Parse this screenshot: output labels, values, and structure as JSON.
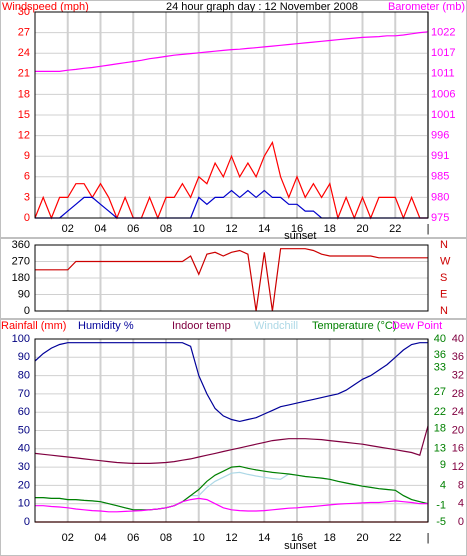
{
  "chart_data": [
    {
      "type": "line",
      "title": "24 hour graph day : 12 November 2008",
      "annotation": {
        "text": "sunset",
        "x": 16.2
      },
      "x": [
        0,
        0.5,
        1,
        1.5,
        2,
        2.5,
        3,
        3.5,
        4,
        4.5,
        5,
        5.5,
        6,
        6.5,
        7,
        7.5,
        8,
        8.5,
        9,
        9.5,
        10,
        10.5,
        11,
        11.5,
        12,
        12.5,
        13,
        13.5,
        14,
        14.5,
        15,
        15.5,
        16,
        16.5,
        17,
        17.5,
        18,
        18.5,
        19,
        19.5,
        20,
        20.5,
        21,
        21.5,
        22,
        22.5,
        23,
        23.5,
        24
      ],
      "xlim": [
        0,
        24
      ],
      "xticks": [
        {
          "value": 2,
          "label": "02"
        },
        {
          "value": 4,
          "label": "04"
        },
        {
          "value": 6,
          "label": "06"
        },
        {
          "value": 8,
          "label": "08"
        },
        {
          "value": 10,
          "label": "10"
        },
        {
          "value": 12,
          "label": "12"
        },
        {
          "value": 14,
          "label": "14"
        },
        {
          "value": 16,
          "label": "16"
        },
        {
          "value": 18,
          "label": "18"
        },
        {
          "value": 20,
          "label": "20"
        },
        {
          "value": 22,
          "label": "22"
        },
        {
          "value": 24,
          "label": "|"
        }
      ],
      "ylim": [
        0,
        30
      ],
      "yticks": [
        0,
        3,
        6,
        9,
        12,
        15,
        18,
        21,
        24,
        27,
        30
      ],
      "ycolor": "#ff0000",
      "y2lim": [
        975,
        1027
      ],
      "y2ticks": [
        {
          "value": 975,
          "label": "975"
        },
        {
          "value": 980.2,
          "label": "980"
        },
        {
          "value": 985.4,
          "label": "985"
        },
        {
          "value": 990.6,
          "label": "991"
        },
        {
          "value": 995.8,
          "label": "996"
        },
        {
          "value": 1001,
          "label": "1001"
        },
        {
          "value": 1006.2,
          "label": "1006"
        },
        {
          "value": 1011.4,
          "label": "1011"
        },
        {
          "value": 1016.6,
          "label": "1017"
        },
        {
          "value": 1021.8,
          "label": "1022"
        }
      ],
      "y2color": "#ff00ff",
      "grid": true,
      "series": [
        {
          "name": "Windspeed (mph)",
          "color": "#ff0000",
          "axis": "y",
          "values": [
            0,
            3,
            0,
            3,
            3,
            5,
            5,
            3,
            5,
            3,
            0,
            3,
            0,
            0,
            3,
            0,
            3,
            3,
            5,
            3,
            6,
            5,
            8,
            6,
            9,
            6,
            8,
            6,
            9,
            11,
            6,
            3,
            6,
            3,
            5,
            3,
            5,
            0,
            3,
            0,
            3,
            0,
            3,
            3,
            3,
            0,
            3,
            0,
            0
          ]
        },
        {
          "color": "#0000cc",
          "axis": "y",
          "values": [
            0,
            0,
            0,
            0,
            1,
            2,
            3,
            3,
            2,
            1,
            0,
            0,
            0,
            0,
            0,
            0,
            0,
            0,
            0,
            0,
            3,
            2,
            3,
            3,
            4,
            3,
            4,
            3,
            4,
            3,
            3,
            2,
            2,
            1,
            1,
            0,
            0,
            0,
            0,
            0,
            0,
            0,
            0,
            0,
            0,
            0,
            0,
            0,
            0
          ]
        },
        {
          "name": "Barometer (mb)",
          "color": "#ff00ff",
          "axis": "y2",
          "values": [
            1012,
            1012,
            1012,
            1012,
            1012.3,
            1012.5,
            1012.8,
            1013,
            1013.3,
            1013.6,
            1013.9,
            1014.2,
            1014.5,
            1014.8,
            1015.2,
            1015.5,
            1015.8,
            1016.1,
            1016.3,
            1016.5,
            1016.7,
            1016.9,
            1017.1,
            1017.3,
            1017.5,
            1017.6,
            1017.8,
            1018,
            1018.2,
            1018.4,
            1018.6,
            1018.8,
            1019,
            1019.2,
            1019.4,
            1019.6,
            1019.8,
            1020,
            1020.2,
            1020.4,
            1020.6,
            1020.7,
            1020.8,
            1021,
            1021,
            1021.2,
            1021.5,
            1021.8,
            1022
          ]
        }
      ]
    },
    {
      "type": "line",
      "x": [
        0,
        0.5,
        1,
        1.5,
        2,
        2.5,
        3,
        3.5,
        4,
        4.5,
        5,
        5.5,
        6,
        6.5,
        7,
        7.5,
        8,
        8.5,
        9,
        9.5,
        10,
        10.5,
        11,
        11.5,
        12,
        12.5,
        13,
        13.5,
        14,
        14.5,
        15,
        15.5,
        16,
        16.5,
        17,
        17.5,
        18,
        18.5,
        19,
        19.5,
        20,
        20.5,
        21,
        21.5,
        22,
        22.5,
        23,
        23.5,
        24
      ],
      "xlim": [
        0,
        24
      ],
      "xticks": [
        {
          "value": 2,
          "label": ""
        },
        {
          "value": 4,
          "label": ""
        }
      ],
      "ylim": [
        0,
        360
      ],
      "yticks": [
        0,
        90,
        180,
        270,
        360
      ],
      "ycolor": "#000000",
      "y2lim": [
        0,
        360
      ],
      "y2ticks": [
        {
          "value": 0,
          "label": "N"
        },
        {
          "value": 90,
          "label": "E"
        },
        {
          "value": 180,
          "label": "S"
        },
        {
          "value": 270,
          "label": "W"
        },
        {
          "value": 360,
          "label": "N"
        }
      ],
      "y2color": "#cc0000",
      "grid": true,
      "series": [
        {
          "color": "#cc0000",
          "axis": "y",
          "values": [
            225,
            225,
            225,
            225,
            225,
            270,
            270,
            270,
            270,
            270,
            270,
            270,
            270,
            270,
            270,
            270,
            270,
            270,
            270,
            300,
            200,
            310,
            320,
            300,
            320,
            330,
            310,
            0,
            320,
            0,
            340,
            340,
            340,
            340,
            330,
            310,
            300,
            300,
            300,
            300,
            300,
            300,
            290,
            290,
            290,
            290,
            290,
            290,
            290
          ]
        }
      ]
    },
    {
      "type": "line",
      "annotation": {
        "text": "sunset",
        "x": 16.2
      },
      "x": [
        0,
        0.5,
        1,
        1.5,
        2,
        2.5,
        3,
        3.5,
        4,
        4.5,
        5,
        5.5,
        6,
        6.5,
        7,
        7.5,
        8,
        8.5,
        9,
        9.5,
        10,
        10.5,
        11,
        11.5,
        12,
        12.5,
        13,
        13.5,
        14,
        14.5,
        15,
        15.5,
        16,
        16.5,
        17,
        17.5,
        18,
        18.5,
        19,
        19.5,
        20,
        20.5,
        21,
        21.5,
        22,
        22.5,
        23,
        23.5,
        24
      ],
      "xlim": [
        0,
        24
      ],
      "xticks": [
        {
          "value": 2,
          "label": "02"
        },
        {
          "value": 4,
          "label": "04"
        },
        {
          "value": 6,
          "label": "06"
        },
        {
          "value": 8,
          "label": "08"
        },
        {
          "value": 10,
          "label": "10"
        },
        {
          "value": 12,
          "label": "12"
        },
        {
          "value": 14,
          "label": "14"
        },
        {
          "value": 16,
          "label": "16"
        },
        {
          "value": 18,
          "label": "18"
        },
        {
          "value": 20,
          "label": "20"
        },
        {
          "value": 22,
          "label": "22"
        },
        {
          "value": 24,
          "label": "|"
        }
      ],
      "ylim": [
        0,
        100
      ],
      "yticks": [
        0,
        10,
        20,
        30,
        40,
        50,
        60,
        70,
        80,
        90,
        100
      ],
      "ycolor": "#000080",
      "y2lim": [
        0,
        40
      ],
      "y2ticks": [
        0,
        4,
        8,
        12,
        16,
        20,
        24,
        28,
        32,
        36,
        40
      ],
      "y2color": "#800040",
      "y3lim": [
        -5,
        40
      ],
      "y3ticks": [
        -5,
        -1,
        4,
        9,
        13,
        18,
        22,
        27,
        33,
        36,
        40
      ],
      "y3color": "#008000",
      "grid": true,
      "series": [
        {
          "name": "Rainfall (mm)",
          "color": "#ff0000",
          "axis": "y",
          "values": [
            0,
            0,
            0,
            0,
            0,
            0,
            0,
            0,
            0,
            0,
            0,
            0,
            0,
            0,
            0,
            0,
            0,
            0,
            0,
            0,
            0,
            0,
            0,
            0,
            0,
            0,
            0,
            0,
            0,
            0,
            0,
            0,
            0,
            0,
            0,
            0,
            0,
            0,
            0,
            0,
            0,
            0,
            0,
            0,
            0,
            0,
            0,
            0,
            0
          ]
        },
        {
          "name": "Humidity %",
          "color": "#000099",
          "axis": "y",
          "values": [
            88,
            92,
            95,
            97,
            98,
            98,
            98,
            98,
            98,
            98,
            98,
            98,
            98,
            98,
            98,
            98,
            98,
            98,
            98,
            96,
            80,
            70,
            62,
            58,
            56,
            55,
            56,
            57,
            59,
            61,
            63,
            64,
            65,
            66,
            67,
            68,
            69,
            70,
            72,
            75,
            78,
            80,
            83,
            86,
            90,
            94,
            97,
            98,
            98
          ]
        },
        {
          "name": "Indoor temp",
          "color": "#800040",
          "axis": "y2",
          "values": [
            15,
            14.8,
            14.6,
            14.4,
            14.2,
            14,
            13.8,
            13.6,
            13.4,
            13.2,
            13,
            12.9,
            12.8,
            12.8,
            12.8,
            12.9,
            13,
            13.2,
            13.5,
            13.8,
            14.2,
            14.6,
            15,
            15.4,
            15.8,
            16.2,
            16.6,
            17,
            17.4,
            17.8,
            18,
            18.2,
            18.2,
            18.2,
            18.1,
            18,
            17.8,
            17.6,
            17.4,
            17.2,
            17,
            16.7,
            16.4,
            16.1,
            15.8,
            15.5,
            15.2,
            14.6,
            21
          ]
        },
        {
          "name": "Windchill",
          "color": "#add8e6",
          "axis": "y3",
          "values": [
            1,
            1,
            0.8,
            0.8,
            0.5,
            0.5,
            0.3,
            0.2,
            0,
            -0.5,
            -1,
            -1.5,
            -2,
            -2,
            -2,
            -1.8,
            -1.5,
            -1,
            0,
            1.5,
            1.5,
            3.5,
            5,
            6,
            7,
            7.2,
            6.7,
            6.3,
            6,
            5.7,
            5.5,
            6.8,
            6.5,
            6.2,
            6,
            5.8,
            5.5,
            5,
            4.6,
            4.2,
            3.8,
            3.5,
            3.2,
            3,
            2.8,
            1.5,
            0.5,
            0,
            -0.5
          ]
        },
        {
          "name": "Temperature (°C)",
          "color": "#008000",
          "axis": "y3",
          "values": [
            1,
            1,
            0.8,
            0.8,
            0.5,
            0.5,
            0.3,
            0.2,
            0,
            -0.5,
            -1,
            -1.5,
            -2,
            -2,
            -2,
            -1.8,
            -1.5,
            -1,
            0,
            1.5,
            3,
            5,
            6.5,
            7.5,
            8.5,
            8.7,
            8.2,
            7.8,
            7.5,
            7.2,
            7,
            6.8,
            6.5,
            6.2,
            6,
            5.8,
            5.5,
            5,
            4.6,
            4.2,
            3.8,
            3.5,
            3.2,
            3,
            2.8,
            1.5,
            0.5,
            0,
            -0.5
          ]
        },
        {
          "name": "Dew Point",
          "color": "#ff00ff",
          "axis": "y3",
          "values": [
            -1,
            -1,
            -1.2,
            -1.3,
            -1.5,
            -1.8,
            -2,
            -2.2,
            -2.3,
            -2.5,
            -2.5,
            -2.4,
            -2.3,
            -2.2,
            -2,
            -1.8,
            -1.5,
            -1,
            0,
            0.5,
            0.8,
            0.5,
            -0.5,
            -1.5,
            -2,
            -2.2,
            -2.3,
            -2.3,
            -2.2,
            -2,
            -1.8,
            -1.6,
            -1.5,
            -1.3,
            -1.2,
            -1,
            -0.8,
            -0.6,
            -0.5,
            -0.4,
            -0.3,
            -0.2,
            -0.2,
            0,
            0.2,
            0,
            -0.2,
            -0.5,
            -0.5
          ]
        }
      ]
    }
  ]
}
